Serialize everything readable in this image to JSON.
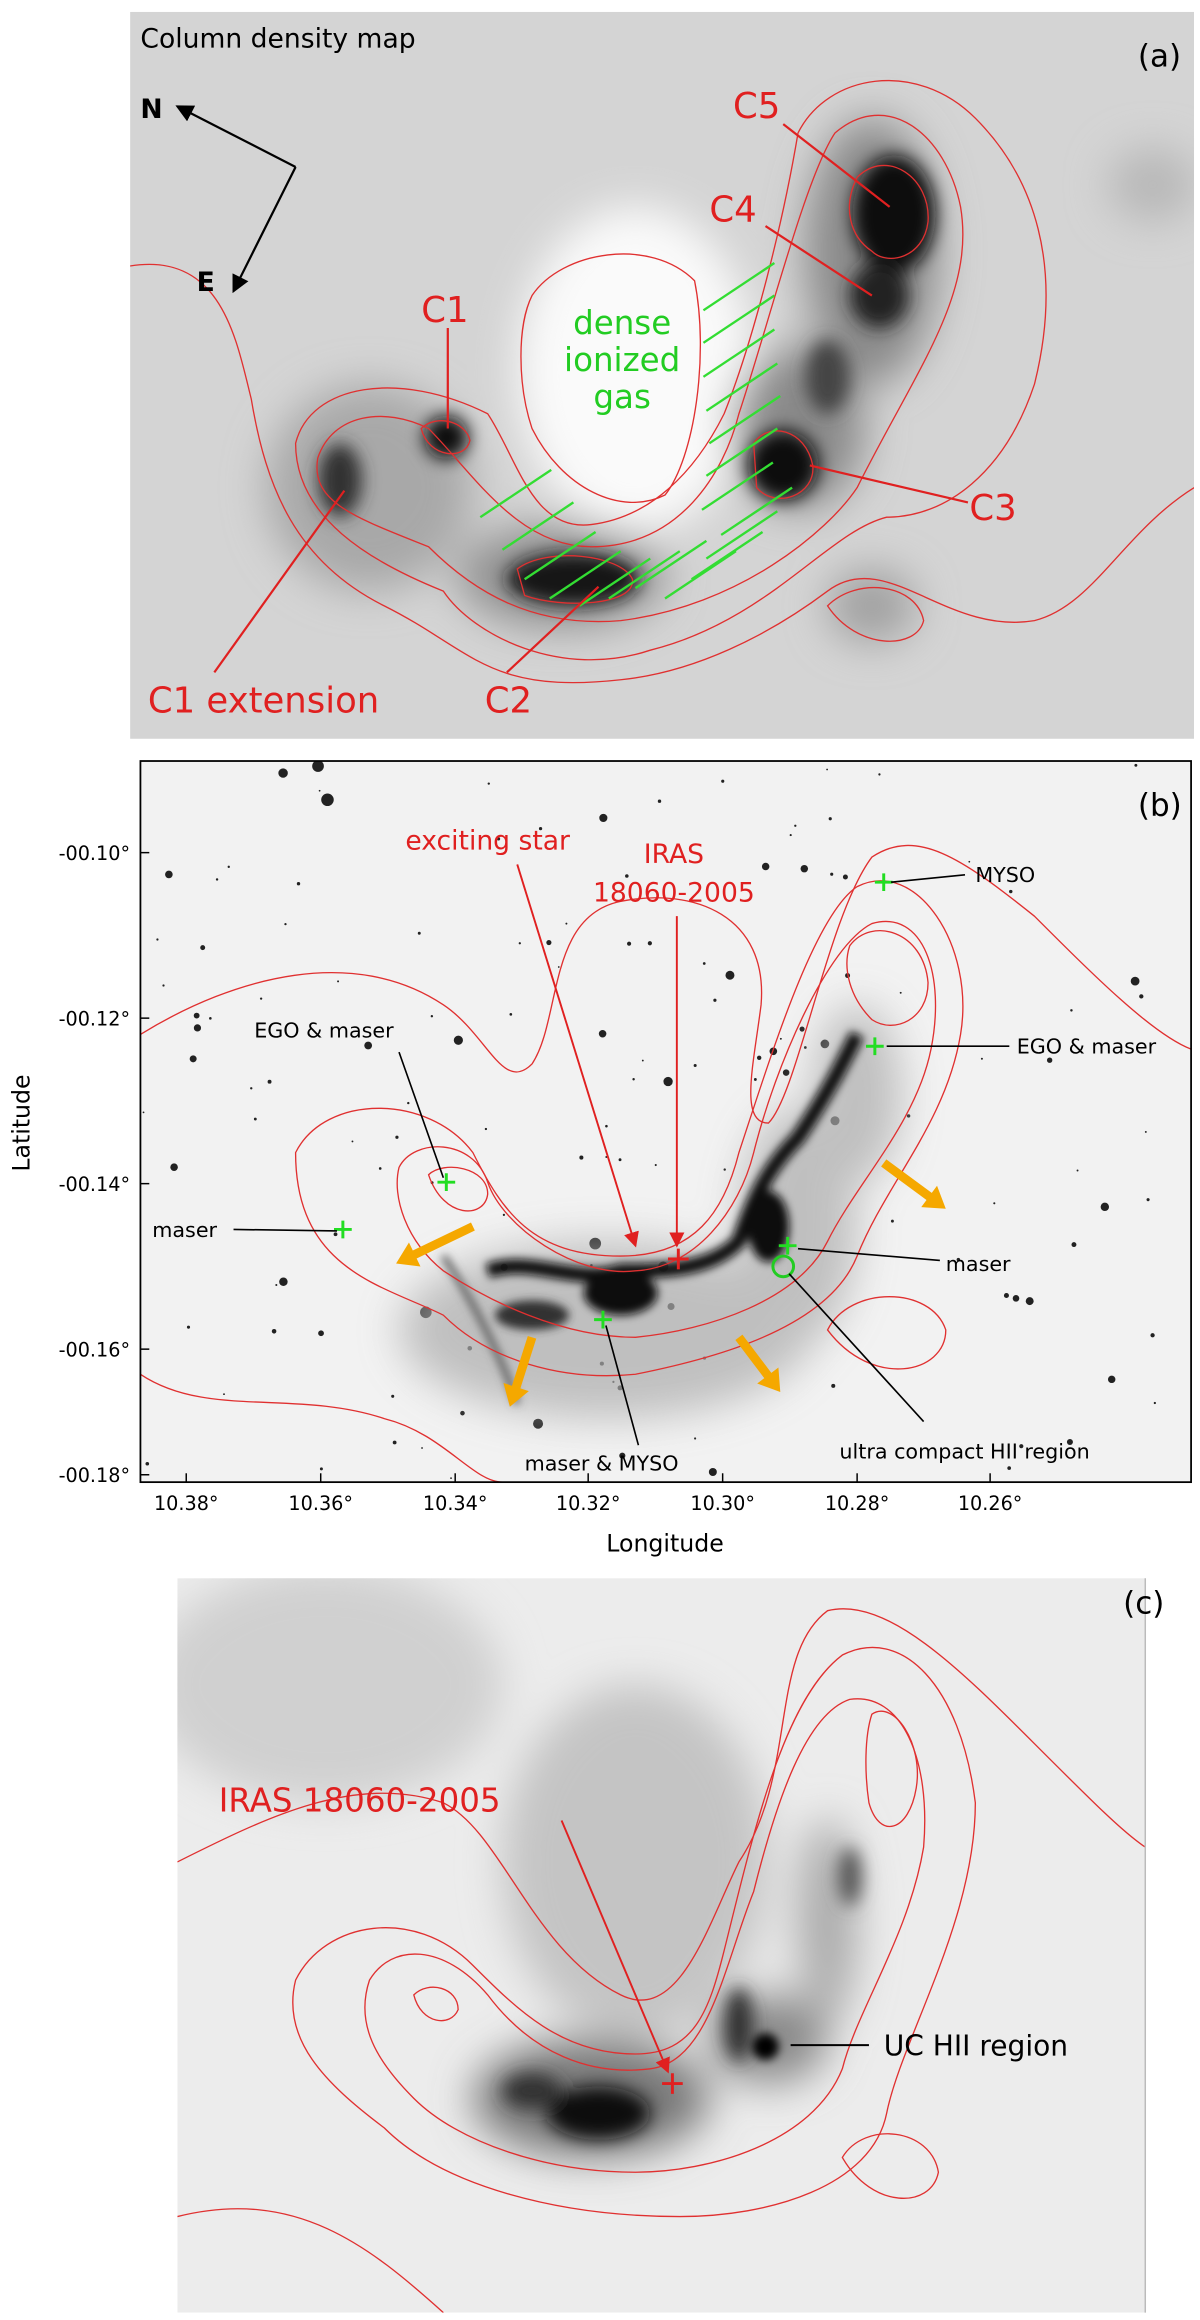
{
  "panel_a": {
    "title": "Column density map",
    "tag": "(a)",
    "compass": [
      "N",
      "E"
    ],
    "clumps": [
      "C5",
      "C4",
      "C1",
      "C3",
      "C2",
      "C1 extension"
    ],
    "annotation": [
      "dense",
      "ionized",
      "gas"
    ]
  },
  "panel_b": {
    "tag": "(b)",
    "y_axis_label": "Latitude",
    "x_axis_label": "Longitude",
    "yticks": [
      "-00.10°",
      "-00.12°",
      "-00.14°",
      "-00.16°",
      "-00.18°"
    ],
    "xticks": [
      "10.38°",
      "10.36°",
      "10.34°",
      "10.32°",
      "10.30°",
      "10.28°",
      "10.26°"
    ],
    "red_labels": [
      "exciting star",
      "IRAS",
      "18060-2005"
    ],
    "labels": [
      "MYSO",
      "EGO & maser",
      "EGO & maser",
      "maser",
      "maser",
      "maser & MYSO",
      "ultra compact HII region"
    ]
  },
  "panel_c": {
    "tag": "(c)",
    "labels": [
      "IRAS 18060-2005",
      "UC HII region"
    ]
  }
}
